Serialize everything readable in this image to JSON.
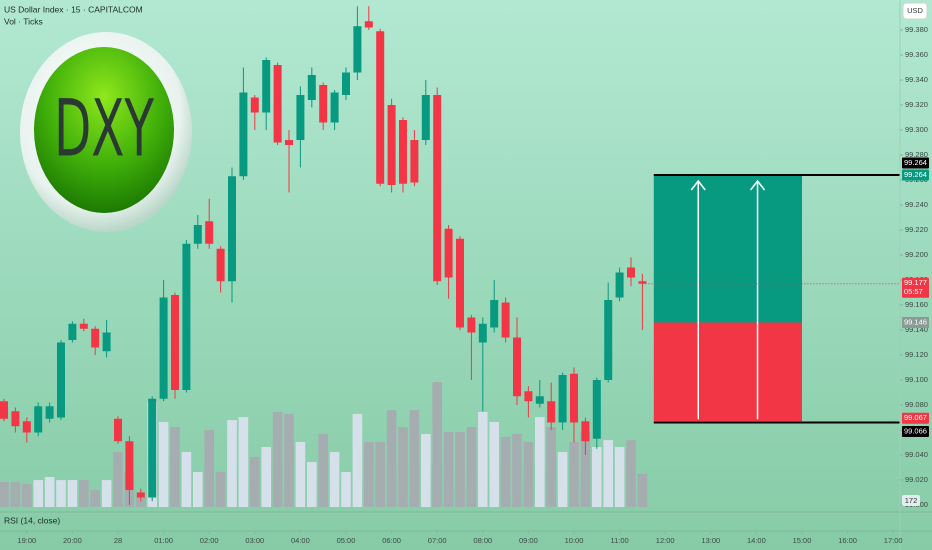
{
  "chart_data": {
    "type": "candlestick",
    "title": "US Dollar Index · 15 · CAPITALCOM",
    "subtitle": "Vol · Ticks",
    "currency": "USD",
    "indicator": "RSI (14, close)",
    "logo_text": "DXY",
    "categories": [
      "18:30",
      "18:45",
      "19:00",
      "19:15",
      "19:30",
      "19:45",
      "20:00",
      "20:15",
      "20:30",
      "20:45",
      "00:00",
      "00:15",
      "00:30",
      "00:45",
      "01:00",
      "01:15",
      "01:30",
      "01:45",
      "02:00",
      "02:15",
      "02:30",
      "02:45",
      "03:00",
      "03:15",
      "03:30",
      "03:45",
      "04:00",
      "04:15",
      "04:30",
      "04:45",
      "05:00",
      "05:15",
      "05:30",
      "05:45",
      "06:00",
      "06:15",
      "06:30",
      "06:45",
      "07:00",
      "07:15",
      "07:30",
      "07:45",
      "08:00",
      "08:15",
      "08:30",
      "08:45",
      "09:00",
      "09:15",
      "09:30",
      "09:45",
      "10:00",
      "10:15",
      "10:30",
      "10:45",
      "11:00",
      "11:15",
      "11:30"
    ],
    "open": [
      99.083,
      99.075,
      99.067,
      99.058,
      99.069,
      99.07,
      99.132,
      99.145,
      99.141,
      99.123,
      99.069,
      99.051,
      99.01,
      99.006,
      99.085,
      99.168,
      99.092,
      99.209,
      99.227,
      99.205,
      99.179,
      99.263,
      99.326,
      99.314,
      99.352,
      99.292,
      99.292,
      99.324,
      99.336,
      99.306,
      99.328,
      99.346,
      99.387,
      99.379,
      99.32,
      99.308,
      99.292,
      99.292,
      99.328,
      99.221,
      99.213,
      99.15,
      99.13,
      99.142,
      99.162,
      99.134,
      99.091,
      99.081,
      99.083,
      99.066,
      99.105,
      99.067,
      99.053,
      99.1,
      99.166,
      99.19,
      99.179
    ],
    "high": [
      99.085,
      99.078,
      99.07,
      99.082,
      99.082,
      99.132,
      99.147,
      99.149,
      99.143,
      99.148,
      99.071,
      99.055,
      99.013,
      99.087,
      99.18,
      99.17,
      99.212,
      99.232,
      99.245,
      99.207,
      99.27,
      99.35,
      99.328,
      99.358,
      99.354,
      99.3,
      99.335,
      99.35,
      99.338,
      99.332,
      99.35,
      99.399,
      99.399,
      99.381,
      99.325,
      99.31,
      99.3,
      99.34,
      99.334,
      99.224,
      99.215,
      99.152,
      99.15,
      99.18,
      99.166,
      99.15,
      99.095,
      99.1,
      99.098,
      99.106,
      99.11,
      99.07,
      99.102,
      99.178,
      99.19,
      99.198,
      99.185
    ],
    "low": [
      99.067,
      99.058,
      99.05,
      99.055,
      99.066,
      99.068,
      99.13,
      99.139,
      99.12,
      99.118,
      99.049,
      99.0,
      99.003,
      99.003,
      99.083,
      99.085,
      99.09,
      99.205,
      99.205,
      99.17,
      99.162,
      99.26,
      99.3,
      99.3,
      99.288,
      99.25,
      99.27,
      99.318,
      99.3,
      99.3,
      99.324,
      99.34,
      99.38,
      99.255,
      99.25,
      99.25,
      99.255,
      99.288,
      99.176,
      99.165,
      99.14,
      99.1,
      99.075,
      99.138,
      99.13,
      99.08,
      99.07,
      99.078,
      99.06,
      99.06,
      99.05,
      99.04,
      99.045,
      99.098,
      99.163,
      99.175,
      99.14
    ],
    "close": [
      99.069,
      99.063,
      99.058,
      99.079,
      99.079,
      99.13,
      99.145,
      99.141,
      99.126,
      99.138,
      99.051,
      99.012,
      99.006,
      99.085,
      99.166,
      99.092,
      99.209,
      99.224,
      99.209,
      99.179,
      99.263,
      99.33,
      99.314,
      99.356,
      99.29,
      99.288,
      99.328,
      99.344,
      99.306,
      99.33,
      99.346,
      99.383,
      99.382,
      99.257,
      99.256,
      99.257,
      99.258,
      99.328,
      99.179,
      99.182,
      99.142,
      99.138,
      99.145,
      99.164,
      99.134,
      99.087,
      99.083,
      99.087,
      99.066,
      99.104,
      99.066,
      99.051,
      99.1,
      99.164,
      99.186,
      99.182,
      99.177
    ],
    "volume": [
      130,
      130,
      120,
      140,
      156,
      140,
      140,
      140,
      88,
      140,
      286,
      182,
      52,
      546,
      442,
      416,
      286,
      182,
      400,
      182,
      452,
      468,
      260,
      312,
      494,
      484,
      338,
      234,
      380,
      286,
      182,
      484,
      338,
      338,
      504,
      416,
      504,
      380,
      650,
      390,
      390,
      416,
      494,
      442,
      364,
      380,
      338,
      468,
      416,
      286,
      338,
      390,
      312,
      348,
      312,
      348,
      172
    ],
    "up_color": "#089981",
    "down_color": "#f23645",
    "volume_up_color": "#d9e0ee",
    "volume_down_color": "#a7abb1",
    "ylim": [
      98.9944,
      99.404
    ],
    "yticks": [
      {
        "value": 99.0,
        "label": "99.000"
      },
      {
        "value": 99.02,
        "label": "99.020"
      },
      {
        "value": 99.04,
        "label": "99.040"
      },
      {
        "value": 99.06,
        "label": "99.060"
      },
      {
        "value": 99.08,
        "label": "99.080"
      },
      {
        "value": 99.1,
        "label": "99.100"
      },
      {
        "value": 99.12,
        "label": "99.120"
      },
      {
        "value": 99.14,
        "label": "99.140"
      },
      {
        "value": 99.16,
        "label": "99.160"
      },
      {
        "value": 99.18,
        "label": "99.180"
      },
      {
        "value": 99.2,
        "label": "99.200"
      },
      {
        "value": 99.22,
        "label": "99.220"
      },
      {
        "value": 99.24,
        "label": "99.240"
      },
      {
        "value": 99.26,
        "label": "99.260"
      },
      {
        "value": 99.28,
        "label": "99.280"
      },
      {
        "value": 99.3,
        "label": "99.300"
      },
      {
        "value": 99.32,
        "label": "99.320"
      },
      {
        "value": 99.34,
        "label": "99.340"
      },
      {
        "value": 99.36,
        "label": "99.360"
      },
      {
        "value": 99.38,
        "label": "99.380"
      }
    ],
    "xticks": [
      "19:00",
      "20:00",
      {
        "value": "00:00",
        "label": "28"
      },
      "01:00",
      "02:00",
      "03:00",
      "04:00",
      "05:00",
      "06:00",
      "07:00",
      "08:00",
      "09:00",
      "10:00",
      "11:00",
      "12:00",
      "13:00",
      "14:00",
      "15:00",
      "16:00",
      "17:00"
    ],
    "grid": false,
    "last_price": 99.177,
    "countdown": "05:57",
    "position": {
      "from": "11:45",
      "to": "15:00",
      "target": 99.264,
      "entry": 99.146,
      "stop": 99.067,
      "target_color": "#089981",
      "stop_color": "#f23645"
    },
    "lines": [
      99.264,
      99.066
    ]
  }
}
